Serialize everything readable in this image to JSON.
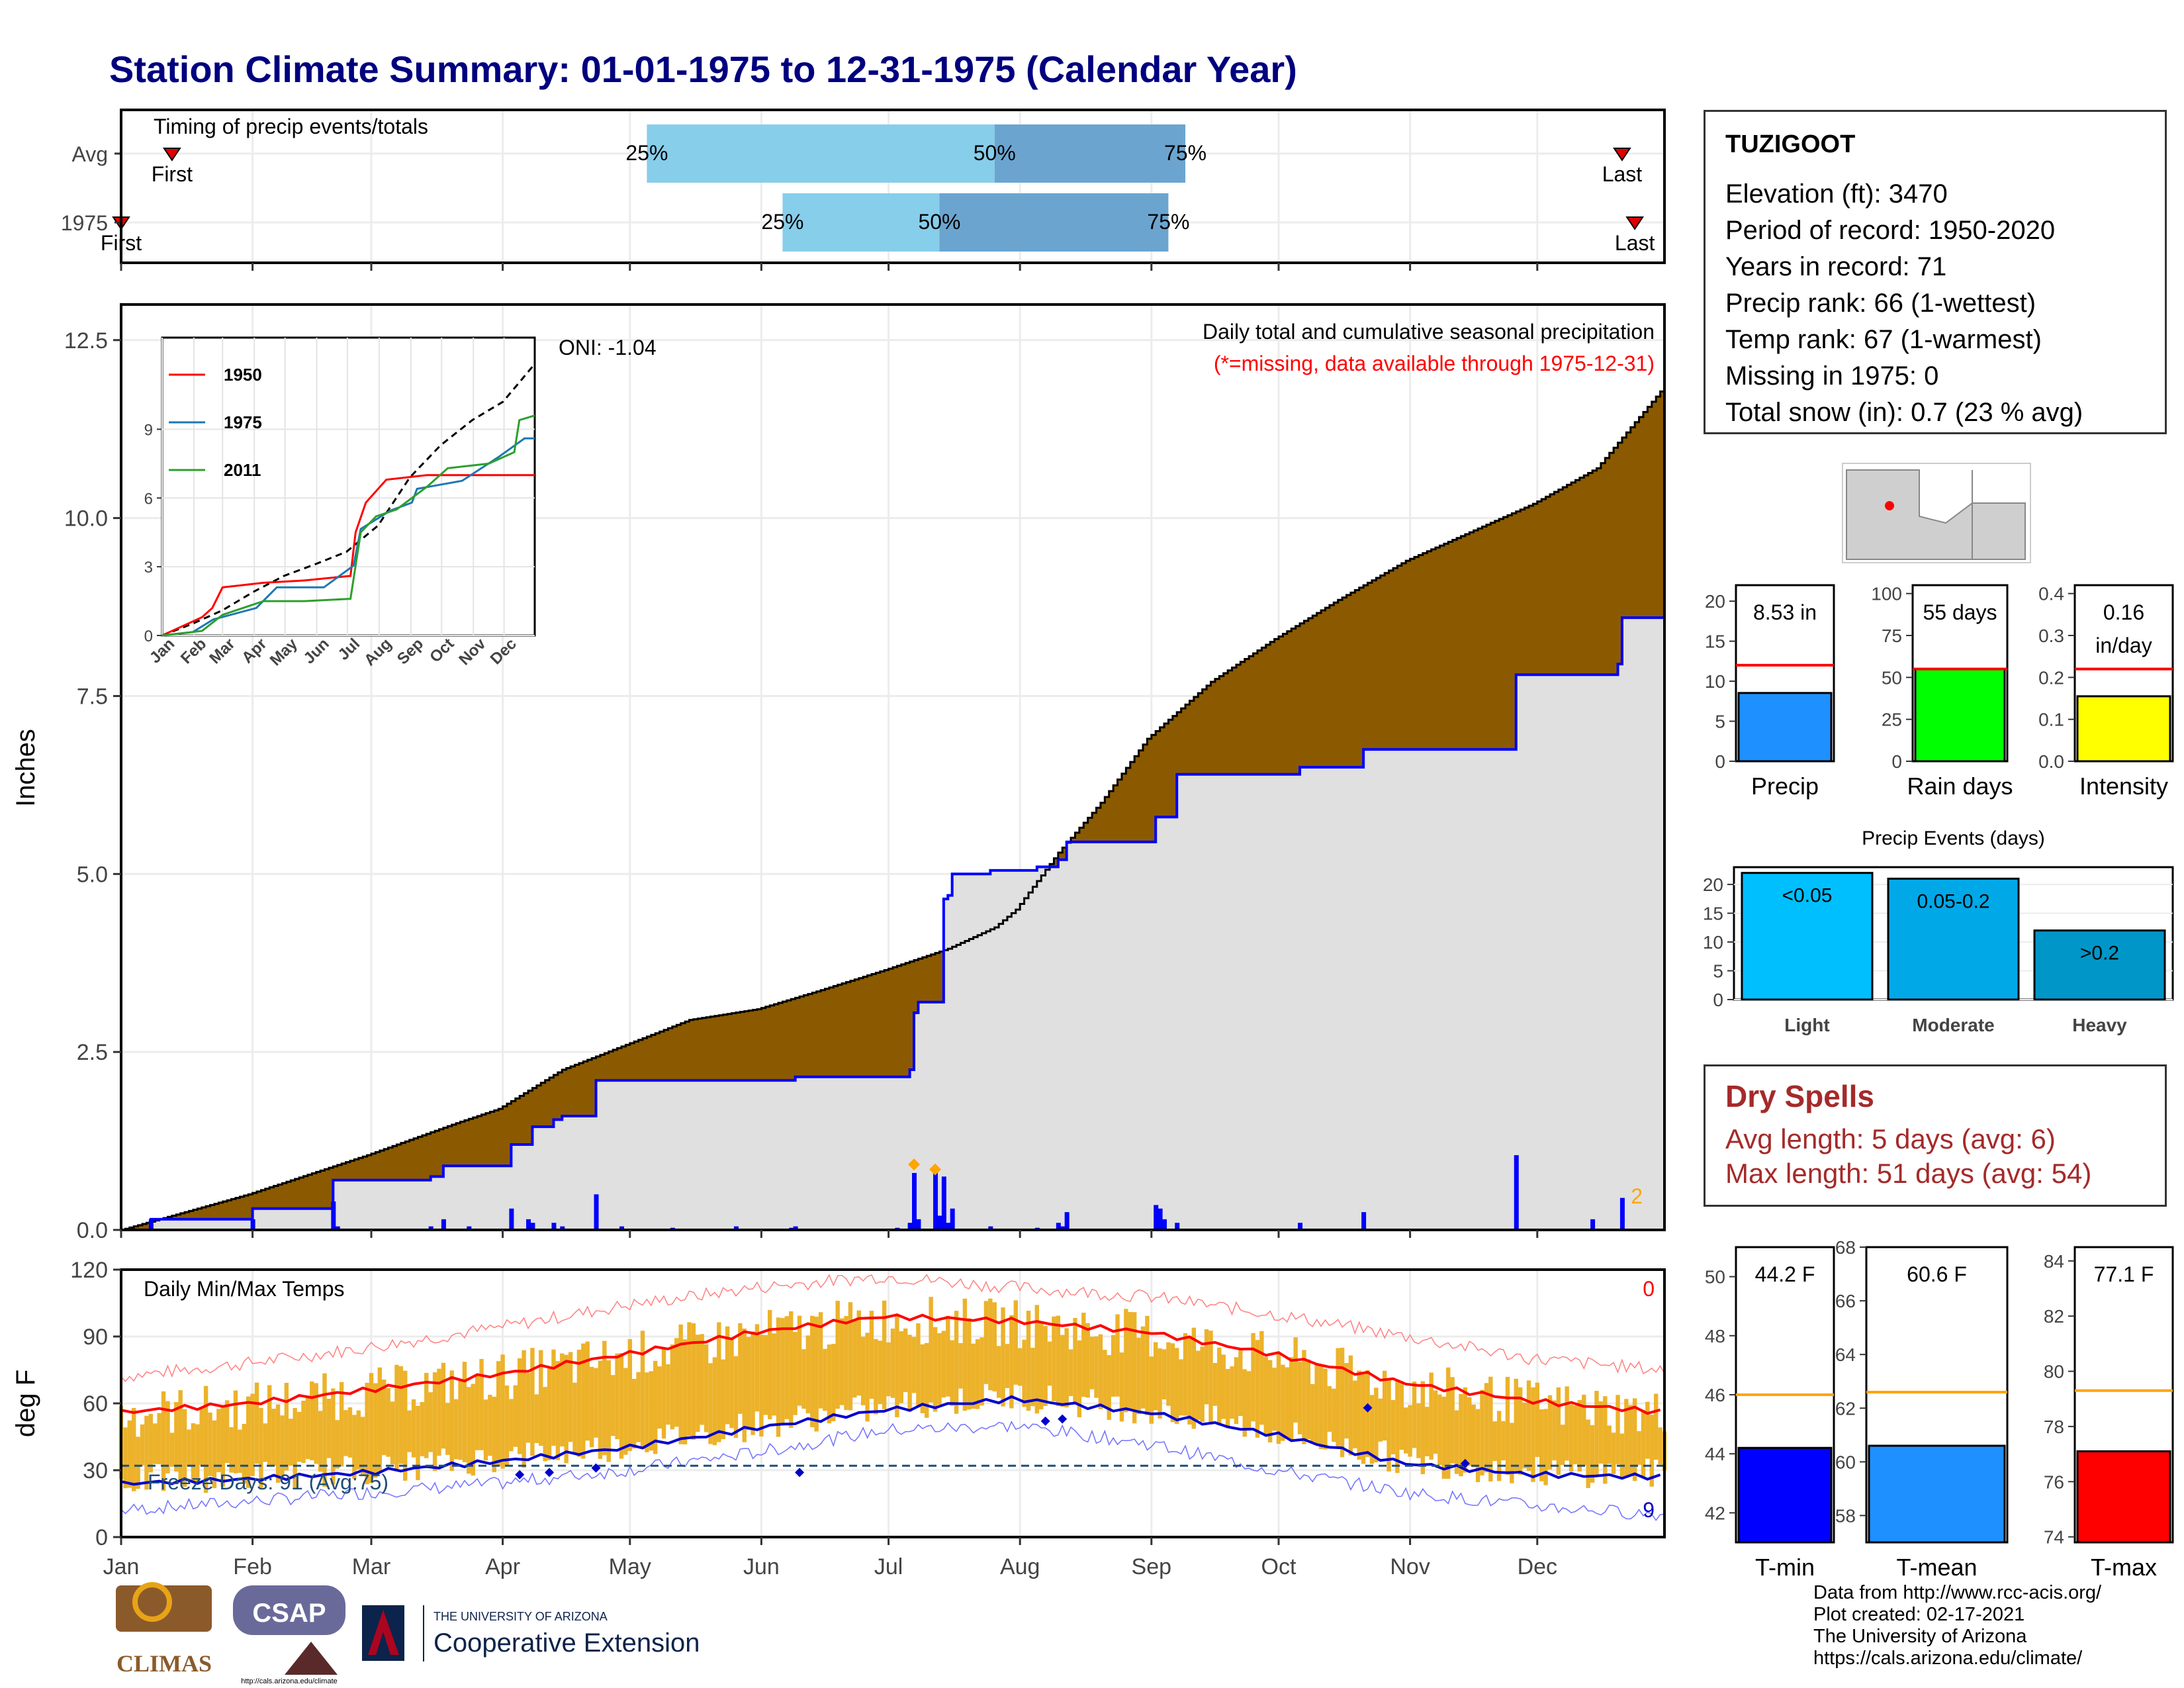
{
  "title": "Station Climate Summary: 01-01-1975 to 12-31-1975 (Calendar Year)",
  "station": {
    "name": "TUZIGOOT",
    "lines": [
      "Elevation (ft): 3470",
      "Period of record: 1950-2020",
      "Years in record: 71",
      "Precip rank: 66 (1-wettest)",
      "Temp rank: 67 (1-warmest)",
      "Missing in 1975: 0",
      "Total snow (in): 0.7 (23 % avg)"
    ]
  },
  "dry_spells": {
    "heading": "Dry Spells",
    "avg_length": "Avg length: 5 days (avg: 6)",
    "max_length": "Max length: 51 days (avg: 54)"
  },
  "footer": {
    "lines": [
      "Data from http://www.rcc-acis.org/",
      "Plot created: 02-17-2021",
      "The University of Arizona",
      "https://cals.arizona.edu/climate/"
    ]
  },
  "logos": {
    "climas": "CLIMAS",
    "csap": "CSAP",
    "csap_url": "http://cals.arizona.edu/climate",
    "ua_small": "THE UNIVERSITY OF ARIZONA",
    "ua_big": "Cooperative Extension"
  },
  "colors": {
    "title": "#00007f",
    "brown": "#8b5a00",
    "gray_fill": "#e0e0e0",
    "blue_line": "#0000ff",
    "light_blue": "#87ceeb",
    "mid_blue": "#6ba5cf",
    "tmax_red": "#ff0000",
    "bar_gold": "#ecb22a",
    "dry_red": "#a52a2a"
  },
  "months": [
    "Jan",
    "Feb",
    "Mar",
    "Apr",
    "May",
    "Jun",
    "Jul",
    "Aug",
    "Sep",
    "Oct",
    "Nov",
    "Dec"
  ],
  "chart_data": [
    {
      "type": "timing",
      "title": "Timing of precip events/totals",
      "rows": [
        {
          "label": "Avg",
          "first_doy": 13,
          "q25_doy": 125,
          "q50_doy": 207,
          "q75_doy": 252,
          "last_doy": 355,
          "first_label": "First",
          "last_label": "Last"
        },
        {
          "label": "1975",
          "first_doy": 1,
          "q25_doy": 157,
          "q50_doy": 194,
          "q75_doy": 248,
          "last_doy": 358,
          "first_label": "First",
          "last_label": "Last"
        }
      ],
      "q_labels": [
        "25%",
        "50%",
        "75%"
      ]
    },
    {
      "type": "area",
      "title": "Daily total and cumulative seasonal precipitation",
      "subtitle": "(*=missing, data available through 1975-12-31)",
      "ylabel": "Inches",
      "ylim": [
        0,
        13
      ],
      "yticks": [
        0.0,
        2.5,
        5.0,
        7.5,
        10.0,
        12.5
      ],
      "avg_cumulative": [
        [
          1,
          0
        ],
        [
          10,
          0.15
        ],
        [
          31,
          0.5
        ],
        [
          59,
          1.05
        ],
        [
          80,
          1.5
        ],
        [
          90,
          1.7
        ],
        [
          105,
          2.25
        ],
        [
          120,
          2.6
        ],
        [
          135,
          2.95
        ],
        [
          151,
          3.1
        ],
        [
          165,
          3.35
        ],
        [
          181,
          3.65
        ],
        [
          196,
          3.95
        ],
        [
          207,
          4.25
        ],
        [
          212,
          4.5
        ],
        [
          222,
          5.3
        ],
        [
          232,
          6.0
        ],
        [
          243,
          6.9
        ],
        [
          258,
          7.7
        ],
        [
          273,
          8.3
        ],
        [
          288,
          8.85
        ],
        [
          304,
          9.4
        ],
        [
          319,
          9.8
        ],
        [
          334,
          10.2
        ],
        [
          349,
          10.7
        ],
        [
          365,
          11.85
        ]
      ],
      "obs_cumulative": [
        [
          1,
          0
        ],
        [
          8,
          0.15
        ],
        [
          31,
          0.15
        ],
        [
          32,
          0.3
        ],
        [
          50,
          0.3
        ],
        [
          51,
          0.7
        ],
        [
          74,
          0.75
        ],
        [
          77,
          0.9
        ],
        [
          92,
          0.9
        ],
        [
          93,
          1.2
        ],
        [
          98,
          1.45
        ],
        [
          103,
          1.55
        ],
        [
          105,
          1.6
        ],
        [
          113,
          2.1
        ],
        [
          159,
          2.1
        ],
        [
          160,
          2.15
        ],
        [
          184,
          2.15
        ],
        [
          187,
          2.25
        ],
        [
          188,
          3.05
        ],
        [
          189,
          3.2
        ],
        [
          195,
          4.65
        ],
        [
          196,
          4.7
        ],
        [
          197,
          5.0
        ],
        [
          206,
          5.05
        ],
        [
          217,
          5.1
        ],
        [
          222,
          5.2
        ],
        [
          223,
          5.2
        ],
        [
          224,
          5.45
        ],
        [
          244,
          5.45
        ],
        [
          245,
          5.8
        ],
        [
          250,
          6.4
        ],
        [
          279,
          6.5
        ],
        [
          294,
          6.75
        ],
        [
          329,
          6.75
        ],
        [
          330,
          7.8
        ],
        [
          354,
          7.95
        ],
        [
          355,
          8.6
        ],
        [
          365,
          8.6
        ]
      ],
      "daily_bars": [
        [
          8,
          0.15
        ],
        [
          32,
          0.15
        ],
        [
          51,
          0.4
        ],
        [
          52,
          0.05
        ],
        [
          74,
          0.05
        ],
        [
          77,
          0.15
        ],
        [
          83,
          0.05
        ],
        [
          93,
          0.3
        ],
        [
          97,
          0.15
        ],
        [
          98,
          0.1
        ],
        [
          103,
          0.1
        ],
        [
          105,
          0.05
        ],
        [
          113,
          0.5
        ],
        [
          119,
          0.05
        ],
        [
          131,
          0.03
        ],
        [
          146,
          0.05
        ],
        [
          159,
          0.03
        ],
        [
          160,
          0.05
        ],
        [
          184,
          0.03
        ],
        [
          187,
          0.1
        ],
        [
          188,
          0.8
        ],
        [
          189,
          0.15
        ],
        [
          193,
          0.85
        ],
        [
          194,
          0.2
        ],
        [
          195,
          0.75
        ],
        [
          196,
          0.1
        ],
        [
          197,
          0.3
        ],
        [
          206,
          0.05
        ],
        [
          217,
          0.03
        ],
        [
          222,
          0.1
        ],
        [
          223,
          0.05
        ],
        [
          224,
          0.25
        ],
        [
          245,
          0.35
        ],
        [
          246,
          0.3
        ],
        [
          247,
          0.15
        ],
        [
          250,
          0.1
        ],
        [
          279,
          0.1
        ],
        [
          294,
          0.25
        ],
        [
          330,
          1.05
        ],
        [
          348,
          0.15
        ],
        [
          355,
          0.45
        ]
      ],
      "annotation": "2",
      "oni": "ONI: -1.04",
      "inset": {
        "yticks": [
          0,
          3,
          6,
          9
        ],
        "ylim": [
          0,
          13
        ],
        "months": [
          "Jan",
          "Feb",
          "Mar",
          "Apr",
          "May",
          "Jun",
          "Jul",
          "Aug",
          "Sep",
          "Oct",
          "Nov",
          "Dec"
        ],
        "series": [
          {
            "name": "1950",
            "color": "#ff0000",
            "points": [
              [
                1,
                0
              ],
              [
                40,
                0.8
              ],
              [
                50,
                1.2
              ],
              [
                60,
                2.1
              ],
              [
                80,
                2.2
              ],
              [
                100,
                2.3
              ],
              [
                140,
                2.4
              ],
              [
                185,
                2.6
              ],
              [
                190,
                4.5
              ],
              [
                200,
                5.8
              ],
              [
                220,
                6.8
              ],
              [
                260,
                7.0
              ],
              [
                300,
                7.0
              ],
              [
                365,
                7.0
              ]
            ]
          },
          {
            "name": "1975",
            "color": "#1f77b4",
            "points": [
              [
                1,
                0
              ],
              [
                31,
                0.15
              ],
              [
                51,
                0.7
              ],
              [
                93,
                1.2
              ],
              [
                113,
                2.1
              ],
              [
                159,
                2.1
              ],
              [
                188,
                3.05
              ],
              [
                195,
                4.65
              ],
              [
                224,
                5.45
              ],
              [
                245,
                5.8
              ],
              [
                250,
                6.4
              ],
              [
                294,
                6.75
              ],
              [
                330,
                7.8
              ],
              [
                355,
                8.6
              ],
              [
                365,
                8.6
              ]
            ]
          },
          {
            "name": "2011",
            "color": "#2ca02c",
            "points": [
              [
                1,
                0
              ],
              [
                40,
                0.2
              ],
              [
                60,
                0.9
              ],
              [
                80,
                1.2
              ],
              [
                100,
                1.5
              ],
              [
                140,
                1.5
              ],
              [
                185,
                1.6
              ],
              [
                195,
                4.5
              ],
              [
                210,
                5.2
              ],
              [
                230,
                5.5
              ],
              [
                260,
                6.5
              ],
              [
                280,
                7.3
              ],
              [
                320,
                7.5
              ],
              [
                345,
                8.0
              ],
              [
                350,
                9.4
              ],
              [
                365,
                9.6
              ]
            ]
          }
        ],
        "avg_dashed": [
          [
            1,
            0
          ],
          [
            30,
            0.5
          ],
          [
            60,
            1.1
          ],
          [
            90,
            1.9
          ],
          [
            120,
            2.6
          ],
          [
            150,
            3.1
          ],
          [
            181,
            3.65
          ],
          [
            212,
            4.8
          ],
          [
            243,
            6.9
          ],
          [
            273,
            8.3
          ],
          [
            304,
            9.4
          ],
          [
            334,
            10.2
          ],
          [
            365,
            11.85
          ]
        ]
      }
    },
    {
      "type": "line",
      "title": "Daily Min/Max Temps",
      "ylabel": "deg F",
      "ylim": [
        0,
        120
      ],
      "yticks": [
        0,
        30,
        60,
        90,
        120
      ],
      "freeze_line": 32,
      "freeze_label": "Freeze Days: 91 (Avg:75)",
      "tmax_avg": [
        [
          1,
          56
        ],
        [
          31,
          60
        ],
        [
          59,
          66
        ],
        [
          90,
          73
        ],
        [
          120,
          82
        ],
        [
          151,
          92
        ],
        [
          181,
          99
        ],
        [
          212,
          97
        ],
        [
          243,
          92
        ],
        [
          273,
          82
        ],
        [
          304,
          69
        ],
        [
          334,
          61
        ],
        [
          365,
          56
        ]
      ],
      "tmin_avg": [
        [
          1,
          24
        ],
        [
          31,
          26
        ],
        [
          59,
          29
        ],
        [
          90,
          34
        ],
        [
          120,
          40
        ],
        [
          151,
          49
        ],
        [
          181,
          57
        ],
        [
          212,
          62
        ],
        [
          243,
          56
        ],
        [
          273,
          46
        ],
        [
          304,
          33
        ],
        [
          334,
          28
        ],
        [
          365,
          27
        ]
      ],
      "record_high_env": [
        [
          1,
          72
        ],
        [
          31,
          78
        ],
        [
          59,
          85
        ],
        [
          90,
          94
        ],
        [
          120,
          104
        ],
        [
          151,
          112
        ],
        [
          181,
          117
        ],
        [
          212,
          112
        ],
        [
          243,
          108
        ],
        [
          273,
          100
        ],
        [
          304,
          90
        ],
        [
          334,
          80
        ],
        [
          365,
          75
        ]
      ],
      "record_low_env": [
        [
          1,
          12
        ],
        [
          31,
          16
        ],
        [
          59,
          20
        ],
        [
          90,
          24
        ],
        [
          120,
          30
        ],
        [
          151,
          38
        ],
        [
          181,
          48
        ],
        [
          212,
          50
        ],
        [
          243,
          42
        ],
        [
          273,
          30
        ],
        [
          304,
          20
        ],
        [
          334,
          14
        ],
        [
          365,
          10
        ]
      ],
      "count_top_right": "0",
      "count_bottom_right": "9"
    },
    {
      "type": "bar",
      "title": "Precip",
      "value_label": "8.53 in",
      "value": 8.53,
      "avg": 12.0,
      "ylim": [
        0,
        22
      ],
      "yticks": [
        0,
        5,
        10,
        15,
        20
      ],
      "color": "#1e90ff"
    },
    {
      "type": "bar",
      "title": "Rain days",
      "value_label": "55 days",
      "value": 55,
      "avg": 55,
      "ylim": [
        0,
        105
      ],
      "yticks": [
        0,
        25,
        50,
        75,
        100
      ],
      "color": "#00ff00"
    },
    {
      "type": "bar",
      "title": "Intensity",
      "value_label": "0.16 in/day",
      "value_label_line1": "0.16",
      "value_label_line2": "in/day",
      "value": 0.155,
      "avg": 0.22,
      "ylim": [
        0,
        0.42
      ],
      "yticks": [
        0.0,
        0.1,
        0.2,
        0.3,
        0.4
      ],
      "color": "#ffff00"
    },
    {
      "type": "bar",
      "title": "Precip Events (days)",
      "categories": [
        "Light",
        "Moderate",
        "Heavy"
      ],
      "bar_labels": [
        "<0.05",
        "0.05-0.2",
        ">0.2"
      ],
      "values": [
        22,
        21,
        12
      ],
      "colors": [
        "#00bfff",
        "#00a8e8",
        "#0096c8"
      ],
      "ylim": [
        0,
        23
      ],
      "yticks": [
        0,
        5,
        10,
        15,
        20
      ]
    },
    {
      "type": "bar",
      "title": "T-min",
      "value_label": "44.2 F",
      "value": 44.2,
      "avg": 46.0,
      "ylim": [
        41,
        51
      ],
      "yticks": [
        42,
        44,
        46,
        48,
        50
      ],
      "color": "#0000ff"
    },
    {
      "type": "bar",
      "title": "T-mean",
      "value_label": "60.6 F",
      "value": 60.6,
      "avg": 62.6,
      "ylim": [
        57,
        68
      ],
      "yticks": [
        58,
        60,
        62,
        64,
        66,
        68
      ],
      "color": "#1e90ff"
    },
    {
      "type": "bar",
      "title": "T-max",
      "value_label": "77.1 F",
      "value": 77.1,
      "avg": 79.3,
      "ylim": [
        73.8,
        84.5
      ],
      "yticks": [
        74,
        76,
        78,
        80,
        82,
        84
      ],
      "color": "#ff0000"
    }
  ]
}
